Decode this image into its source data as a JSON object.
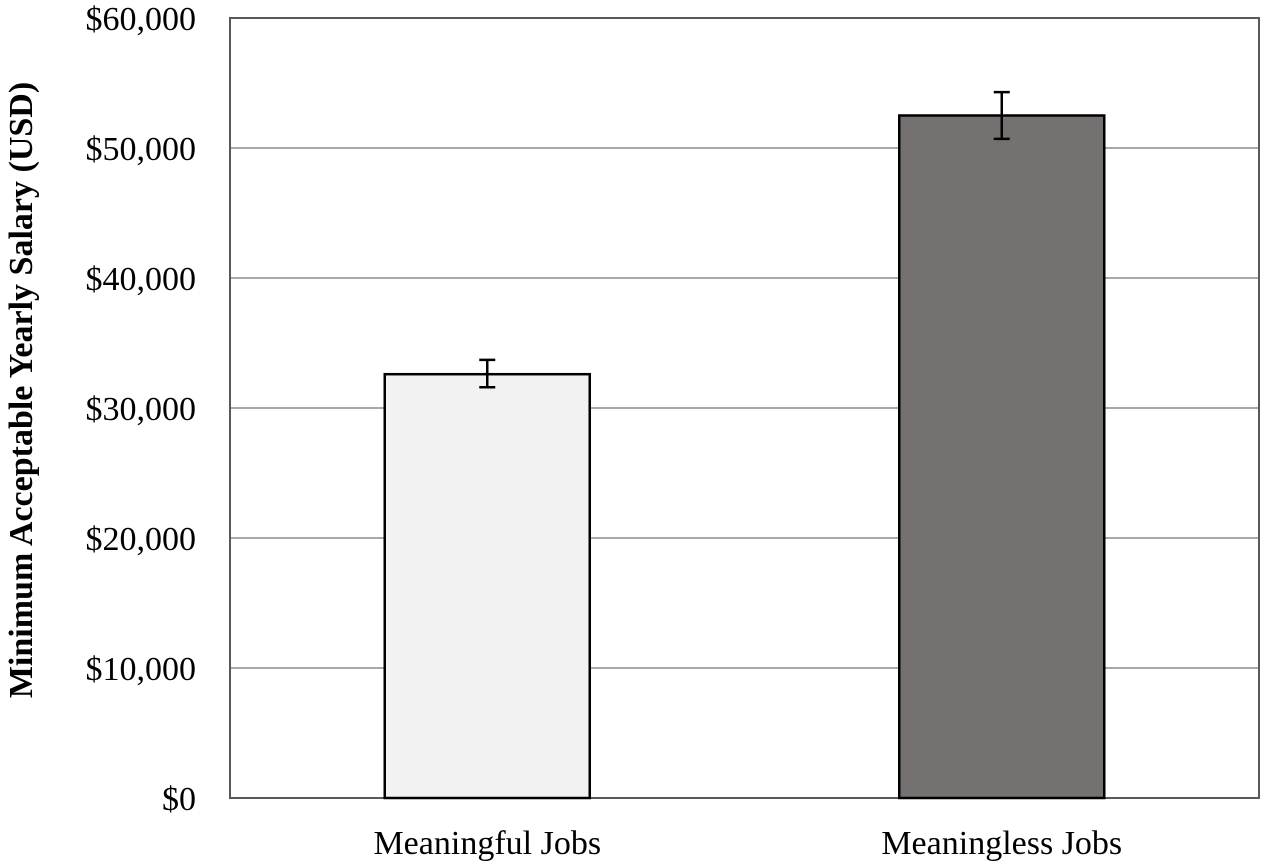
{
  "chart_data": {
    "type": "bar",
    "categories": [
      "Meaningful Jobs",
      "Meaningless Jobs"
    ],
    "values": [
      32600,
      52500
    ],
    "error_low": [
      31600,
      50700
    ],
    "error_high": [
      33700,
      54300
    ],
    "title": "",
    "xlabel": "",
    "ylabel": "Minimum Acceptable Yearly Salary (USD)",
    "ylim": [
      0,
      60000
    ],
    "yticks": [
      0,
      10000,
      20000,
      30000,
      40000,
      50000,
      60000
    ],
    "ytick_labels": [
      "$0",
      "$10,000",
      "$20,000",
      "$30,000",
      "$40,000",
      "$50,000",
      "$60,000"
    ],
    "grid": true,
    "legend": "none",
    "colors": {
      "bars": [
        "#f2f2f2",
        "#767171"
      ],
      "bar_edge": "#000000",
      "grid": "#8c8c8c",
      "frame": "#595959"
    }
  }
}
